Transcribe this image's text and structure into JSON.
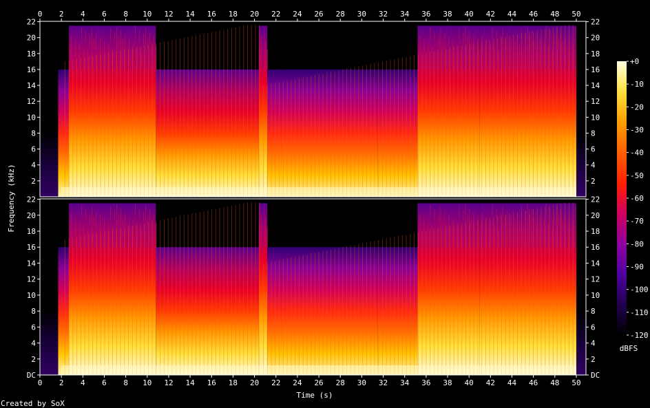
{
  "chart_data": {
    "type": "heatmap",
    "title": "",
    "xlabel": "Time (s)",
    "ylabel": "Frequency (kHz)",
    "x_ticks": [
      "0",
      "2",
      "4",
      "6",
      "8",
      "10",
      "12",
      "14",
      "16",
      "18",
      "20",
      "22",
      "24",
      "26",
      "28",
      "30",
      "32",
      "34",
      "36",
      "38",
      "40",
      "42",
      "44",
      "46",
      "48",
      "50"
    ],
    "xlim": [
      0,
      50.9
    ],
    "y_ticks_top": [
      "2",
      "4",
      "6",
      "8",
      "10",
      "12",
      "14",
      "16",
      "18",
      "20",
      "22"
    ],
    "y_ticks_bottom": [
      "DC",
      "2",
      "4",
      "6",
      "8",
      "10",
      "12",
      "14",
      "16",
      "18",
      "20",
      "22"
    ],
    "ylim_khz": [
      0,
      22.05
    ],
    "channels": 2,
    "colorbar": {
      "label": "dBFS",
      "ticks": [
        "+0",
        "-10",
        "-20",
        "-30",
        "-40",
        "-50",
        "-60",
        "-70",
        "-80",
        "-90",
        "-100",
        "-110",
        "-120"
      ],
      "range": [
        -120,
        0
      ],
      "colors": [
        "#000000",
        "#200050",
        "#5000a0",
        "#9000a0",
        "#d00060",
        "#ff2000",
        "#ff6000",
        "#ffa000",
        "#ffe040",
        "#ffffe0"
      ]
    },
    "segments": [
      {
        "t": [
          0.0,
          1.7
        ],
        "level": "quiet"
      },
      {
        "t": [
          1.7,
          2.7
        ],
        "level": "medium",
        "cutoff_khz": 16
      },
      {
        "t": [
          2.7,
          10.8
        ],
        "level": "loud",
        "cutoff_khz": 21.5
      },
      {
        "t": [
          10.8,
          20.4
        ],
        "level": "loud",
        "cutoff_khz": 16
      },
      {
        "t": [
          20.4,
          21.2
        ],
        "level": "loud",
        "cutoff_khz": 21.5
      },
      {
        "t": [
          21.2,
          22.5
        ],
        "level": "medium",
        "cutoff_khz": 16
      },
      {
        "t": [
          22.5,
          31.5
        ],
        "level": "medium",
        "cutoff_khz": 16
      },
      {
        "t": [
          31.5,
          35.2
        ],
        "level": "medium",
        "cutoff_khz": 16
      },
      {
        "t": [
          35.2,
          41.0
        ],
        "level": "loud",
        "cutoff_khz": 21.5
      },
      {
        "t": [
          41.0,
          50.0
        ],
        "level": "loud",
        "cutoff_khz": 21.5
      },
      {
        "t": [
          50.0,
          50.9
        ],
        "level": "quiet"
      }
    ],
    "footer": "Created by SoX"
  }
}
